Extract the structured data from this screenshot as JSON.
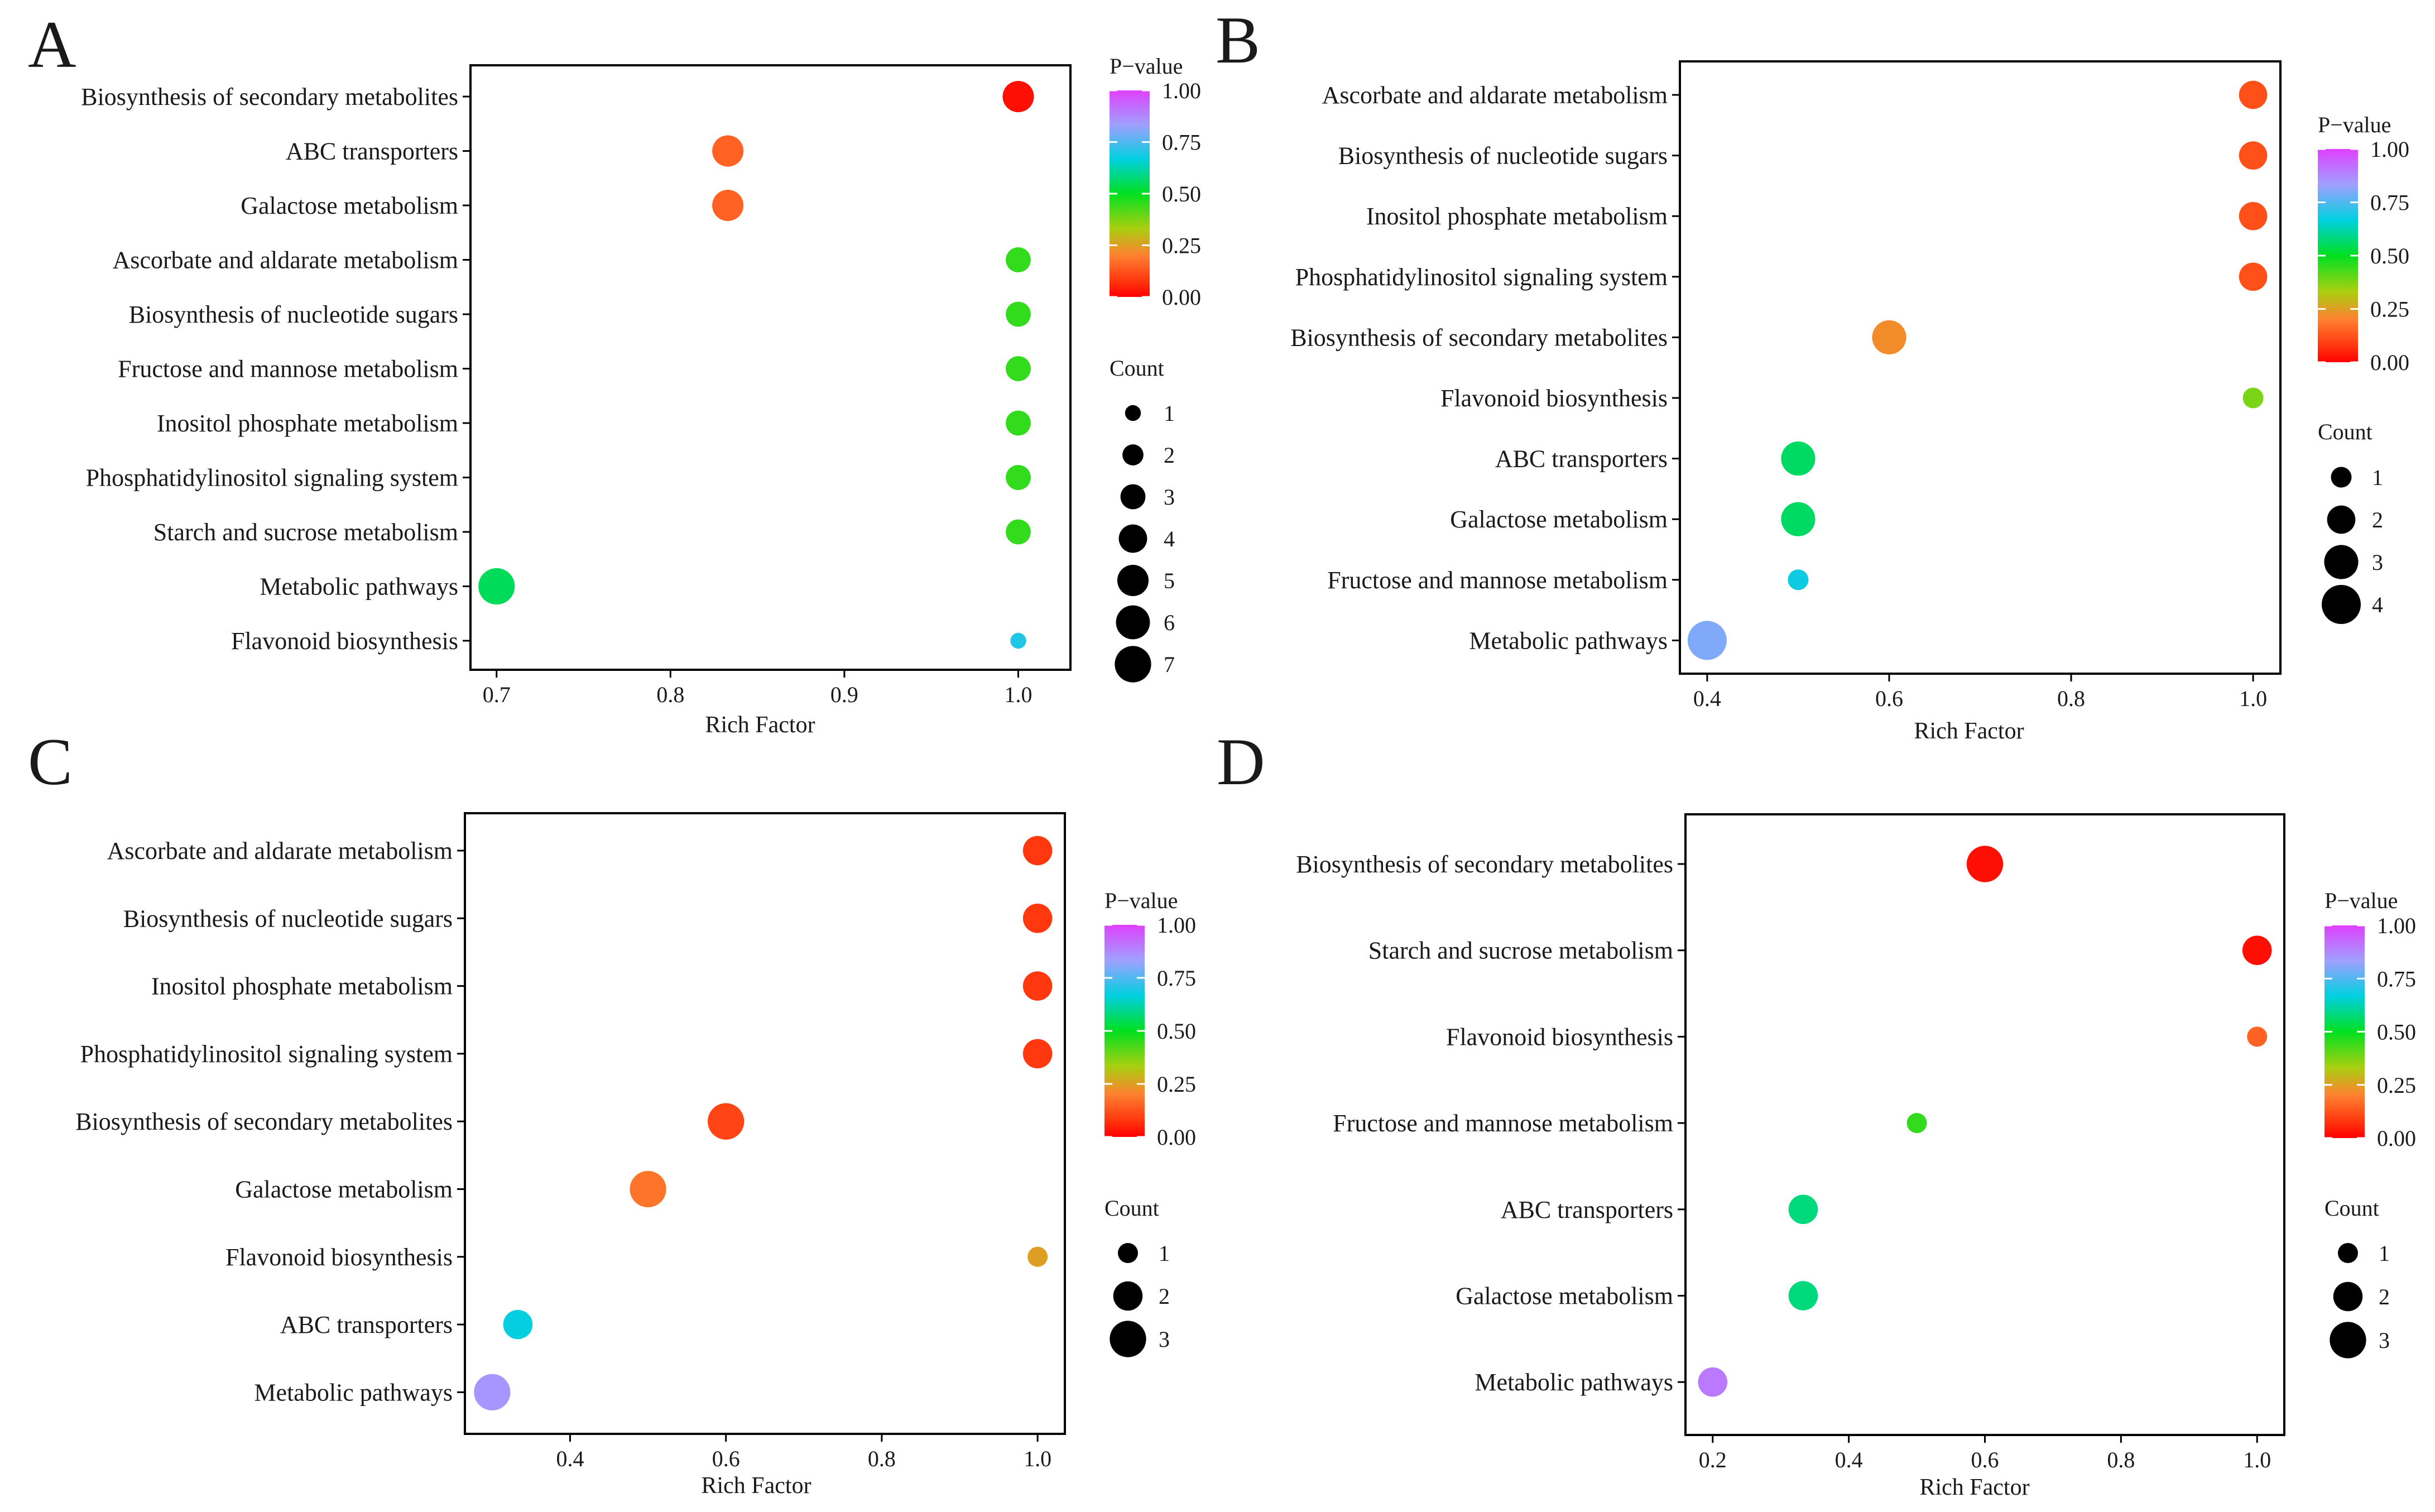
{
  "figure": {
    "background": "#ffffff"
  },
  "chart_data": [
    {
      "panel_label": "A",
      "type": "scatter",
      "xlabel": "Rich Factor",
      "ylabel": "",
      "xlim": [
        0.685,
        1.03
      ],
      "xticks": [
        0.7,
        0.8,
        0.9,
        1.0
      ],
      "xtick_labels": [
        "0.7",
        "0.8",
        "0.9",
        "1.0"
      ],
      "categories": [
        "Biosynthesis of secondary metabolites",
        "ABC transporters",
        "Galactose metabolism",
        "Ascorbate and aldarate metabolism",
        "Biosynthesis of nucleotide sugars",
        "Fructose and mannose metabolism",
        "Inositol phosphate metabolism",
        "Phosphatidylinositol signaling system",
        "Starch and sucrose metabolism",
        "Metabolic pathways",
        "Flavonoid biosynthesis"
      ],
      "x": [
        1.0,
        0.833,
        0.833,
        1.0,
        1.0,
        1.0,
        1.0,
        1.0,
        1.0,
        0.7,
        1.0
      ],
      "p_value": [
        0.02,
        0.15,
        0.15,
        0.45,
        0.45,
        0.45,
        0.45,
        0.45,
        0.45,
        0.55,
        0.7
      ],
      "count": [
        5,
        5,
        5,
        3,
        3,
        3,
        3,
        3,
        3,
        7,
        1
      ],
      "color_legend": {
        "title": "P−value",
        "ticks": [
          1.0,
          0.75,
          0.5,
          0.25,
          0.0
        ],
        "tick_labels": [
          "1.00",
          "0.75",
          "0.50",
          "0.25",
          "0.00"
        ]
      },
      "size_legend": {
        "title": "Count",
        "values": [
          1,
          2,
          3,
          4,
          5,
          6,
          7
        ],
        "labels": [
          "1",
          "2",
          "3",
          "4",
          "5",
          "6",
          "7"
        ]
      }
    },
    {
      "panel_label": "B",
      "type": "scatter",
      "xlabel": "Rich Factor",
      "ylabel": "",
      "xlim": [
        0.37,
        1.03
      ],
      "xticks": [
        0.4,
        0.6,
        0.8,
        1.0
      ],
      "xtick_labels": [
        "0.4",
        "0.6",
        "0.8",
        "1.0"
      ],
      "categories": [
        "Ascorbate and aldarate metabolism",
        "Biosynthesis of nucleotide sugars",
        "Inositol phosphate metabolism",
        "Phosphatidylinositol signaling system",
        "Biosynthesis of secondary metabolites",
        "Flavonoid biosynthesis",
        "ABC transporters",
        "Galactose metabolism",
        "Fructose and mannose metabolism",
        "Metabolic pathways"
      ],
      "x": [
        1.0,
        1.0,
        1.0,
        1.0,
        0.6,
        1.0,
        0.5,
        0.5,
        0.5,
        0.4
      ],
      "p_value": [
        0.12,
        0.12,
        0.12,
        0.12,
        0.22,
        0.38,
        0.56,
        0.56,
        0.68,
        0.8
      ],
      "count": [
        2,
        2,
        2,
        2,
        3,
        1,
        3,
        3,
        1,
        4
      ],
      "color_legend": {
        "title": "P−value",
        "ticks": [
          1.0,
          0.75,
          0.5,
          0.25,
          0.0
        ],
        "tick_labels": [
          "1.00",
          "0.75",
          "0.50",
          "0.25",
          "0.00"
        ]
      },
      "size_legend": {
        "title": "Count",
        "values": [
          1,
          2,
          3,
          4
        ],
        "labels": [
          "1",
          "2",
          "3",
          "4"
        ]
      }
    },
    {
      "panel_label": "C",
      "type": "scatter",
      "xlabel": "Rich Factor",
      "ylabel": "",
      "xlim": [
        0.265,
        1.035
      ],
      "xticks": [
        0.4,
        0.6,
        0.8,
        1.0
      ],
      "xtick_labels": [
        "0.4",
        "0.6",
        "0.8",
        "1.0"
      ],
      "categories": [
        "Ascorbate and aldarate metabolism",
        "Biosynthesis of nucleotide sugars",
        "Inositol phosphate metabolism",
        "Phosphatidylinositol signaling system",
        "Biosynthesis of secondary metabolites",
        "Galactose metabolism",
        "Flavonoid biosynthesis",
        "ABC transporters",
        "Metabolic pathways"
      ],
      "x": [
        1.0,
        1.0,
        1.0,
        1.0,
        0.6,
        0.5,
        1.0,
        0.333,
        0.3
      ],
      "p_value": [
        0.08,
        0.08,
        0.08,
        0.08,
        0.1,
        0.18,
        0.25,
        0.67,
        0.85
      ],
      "count": [
        2,
        2,
        2,
        2,
        3,
        3,
        1,
        2,
        3
      ],
      "color_legend": {
        "title": "P−value",
        "ticks": [
          1.0,
          0.75,
          0.5,
          0.25,
          0.0
        ],
        "tick_labels": [
          "1.00",
          "0.75",
          "0.50",
          "0.25",
          "0.00"
        ]
      },
      "size_legend": {
        "title": "Count",
        "values": [
          1,
          2,
          3
        ],
        "labels": [
          "1",
          "2",
          "3"
        ]
      }
    },
    {
      "panel_label": "D",
      "type": "scatter",
      "xlabel": "Rich Factor",
      "ylabel": "",
      "xlim": [
        0.16,
        1.04
      ],
      "xticks": [
        0.2,
        0.4,
        0.6,
        0.8,
        1.0
      ],
      "xtick_labels": [
        "0.2",
        "0.4",
        "0.6",
        "0.8",
        "1.0"
      ],
      "categories": [
        "Biosynthesis of secondary metabolites",
        "Starch and sucrose metabolism",
        "Flavonoid biosynthesis",
        "Fructose and mannose metabolism",
        "ABC transporters",
        "Galactose metabolism",
        "Metabolic pathways"
      ],
      "x": [
        0.6,
        1.0,
        1.0,
        0.5,
        0.333,
        0.333,
        0.2
      ],
      "p_value": [
        0.02,
        0.02,
        0.15,
        0.45,
        0.58,
        0.58,
        0.9
      ],
      "count": [
        3,
        2,
        1,
        1,
        2,
        2,
        2
      ],
      "color_legend": {
        "title": "P−value",
        "ticks": [
          1.0,
          0.75,
          0.5,
          0.25,
          0.0
        ],
        "tick_labels": [
          "1.00",
          "0.75",
          "0.50",
          "0.25",
          "0.00"
        ]
      },
      "size_legend": {
        "title": "Count",
        "values": [
          1,
          2,
          3
        ],
        "labels": [
          "1",
          "2",
          "3"
        ]
      }
    }
  ]
}
